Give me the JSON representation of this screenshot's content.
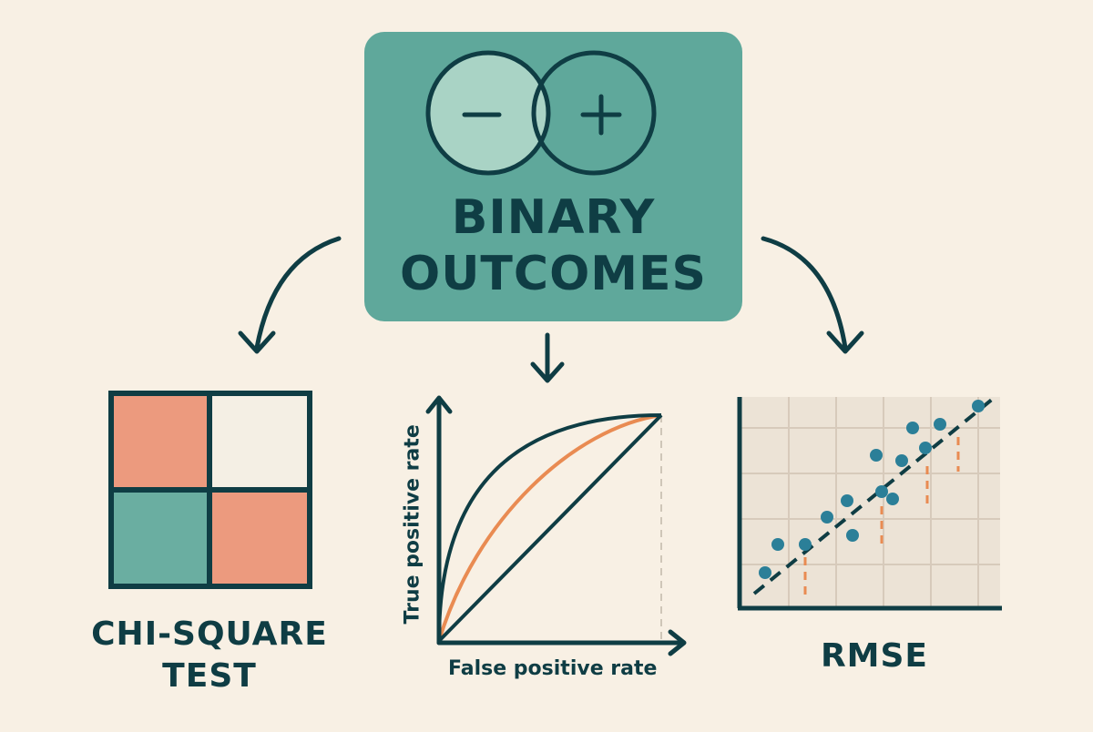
{
  "center": {
    "title_line1": "BINARY",
    "title_line2": "OUTCOMES",
    "minus_symbol": "−",
    "plus_symbol": "+",
    "icon": "overlapping-circles-icon"
  },
  "panels": [
    {
      "label_line1": "CHI-SQUARE",
      "label_line2": "TEST",
      "icon": "contingency-table-icon"
    },
    {
      "label": "",
      "icon": "roc-curve-icon",
      "y_axis_label": "True positive rate",
      "x_axis_label": "False positive rate"
    },
    {
      "label": "RMSE",
      "icon": "residual-scatter-icon"
    }
  ],
  "colors": {
    "background": "#f8f0e4",
    "teal_box": "#5fa89b",
    "teal_light": "#a9d3c5",
    "dark": "#0f3d44",
    "salmon": "#ec9a7e",
    "orange": "#e98b52",
    "blue_dot": "#2b7f98",
    "grid_bg": "#ece3d6",
    "grid_line": "#d7cabb"
  }
}
